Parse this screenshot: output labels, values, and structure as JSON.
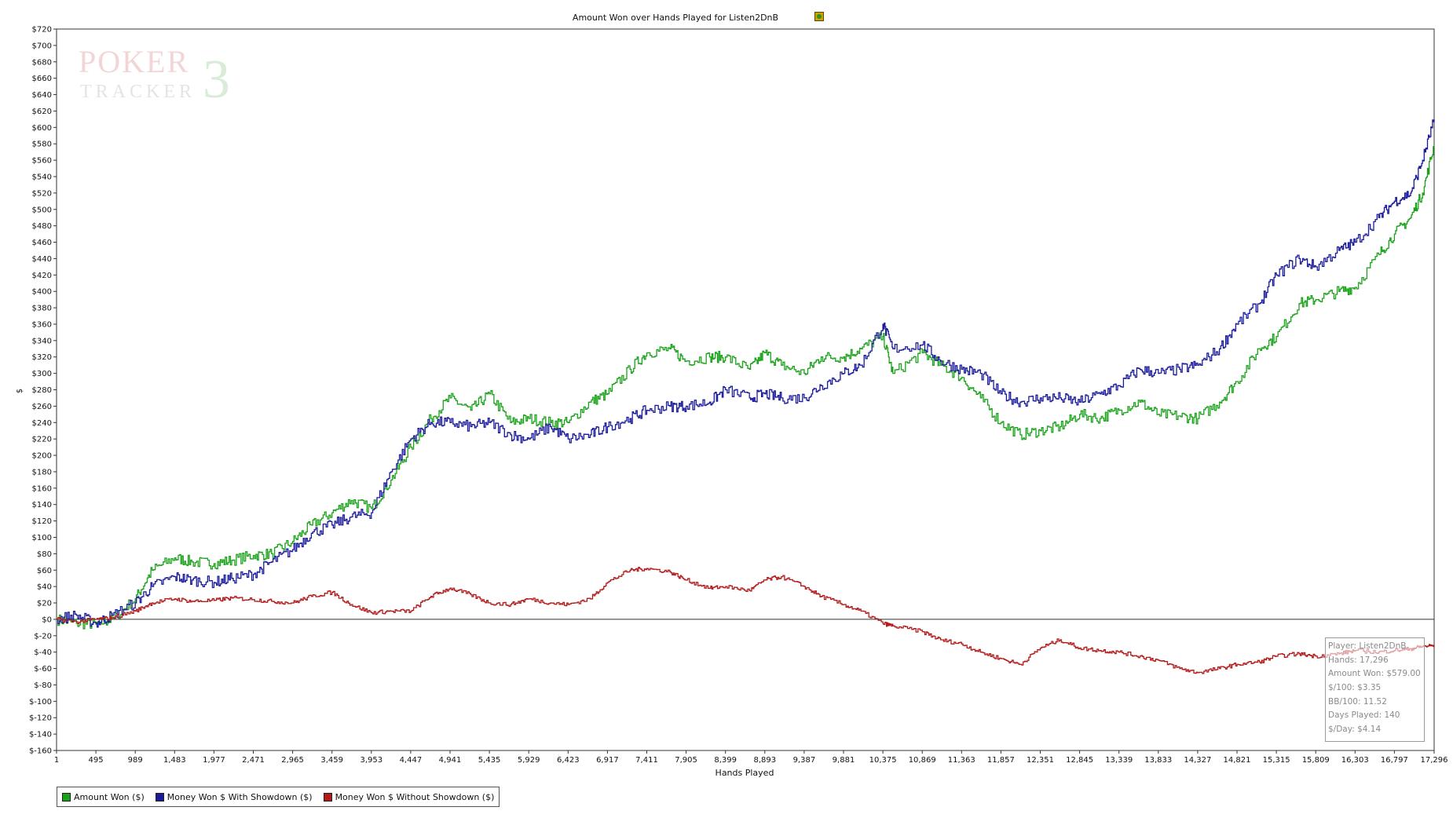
{
  "chart_data": {
    "type": "line",
    "title": "Amount Won over Hands Played for Listen2DnB",
    "xlabel": "Hands Played",
    "ylabel": "$",
    "xlim": [
      1,
      17296
    ],
    "ylim": [
      -160,
      720
    ],
    "x_ticks": [
      "1",
      "495",
      "989",
      "1,483",
      "1,977",
      "2,471",
      "2,965",
      "3,459",
      "3,953",
      "4,447",
      "4,941",
      "5,435",
      "5,929",
      "6,423",
      "6,917",
      "7,411",
      "7,905",
      "8,399",
      "8,893",
      "9,387",
      "9,881",
      "10,375",
      "10,869",
      "11,363",
      "11,857",
      "12,351",
      "12,845",
      "13,339",
      "13,833",
      "14,327",
      "14,821",
      "15,315",
      "15,809",
      "16,303",
      "16,797",
      "17,296"
    ],
    "y_ticks": [
      "$720",
      "$700",
      "$680",
      "$660",
      "$640",
      "$620",
      "$600",
      "$580",
      "$560",
      "$540",
      "$520",
      "$500",
      "$480",
      "$460",
      "$440",
      "$420",
      "$400",
      "$380",
      "$360",
      "$340",
      "$320",
      "$300",
      "$280",
      "$260",
      "$240",
      "$220",
      "$200",
      "$180",
      "$160",
      "$140",
      "$120",
      "$100",
      "$80",
      "$60",
      "$40",
      "$20",
      "$0",
      "$-20",
      "$-40",
      "$-60",
      "$-80",
      "$-100",
      "$-120",
      "$-140",
      "$-160"
    ],
    "grid": false,
    "legend_position": "bottom-left",
    "series": [
      {
        "name": "Amount Won ($)",
        "color": "#1aa31a",
        "x": [
          1,
          250,
          495,
          700,
          989,
          1200,
          1483,
          1700,
          1977,
          2200,
          2471,
          2700,
          2965,
          3200,
          3459,
          3700,
          3953,
          4200,
          4447,
          4700,
          4941,
          5200,
          5435,
          5700,
          5929,
          6200,
          6423,
          6700,
          6917,
          7200,
          7411,
          7700,
          7905,
          8200,
          8399,
          8700,
          8893,
          9100,
          9387,
          9600,
          9881,
          10100,
          10375,
          10500,
          10869,
          11100,
          11363,
          11600,
          11857,
          12100,
          12351,
          12600,
          12845,
          13100,
          13339,
          13600,
          13833,
          14100,
          14327,
          14600,
          14821,
          15100,
          15315,
          15600,
          15809,
          16100,
          16303,
          16600,
          16797,
          17000,
          17150,
          17296
        ],
        "y": [
          0,
          -5,
          -6,
          0,
          25,
          60,
          75,
          70,
          68,
          72,
          78,
          80,
          95,
          115,
          130,
          145,
          135,
          170,
          210,
          245,
          270,
          255,
          275,
          240,
          245,
          240,
          240,
          265,
          275,
          305,
          325,
          330,
          315,
          320,
          320,
          305,
          325,
          310,
          300,
          320,
          320,
          330,
          345,
          300,
          325,
          310,
          295,
          270,
          240,
          225,
          230,
          235,
          250,
          245,
          255,
          265,
          250,
          248,
          245,
          265,
          290,
          330,
          345,
          385,
          390,
          400,
          405,
          445,
          470,
          490,
          520,
          579
        ]
      },
      {
        "name": "Money Won $ With Showdown ($)",
        "color": "#1a1a9c",
        "x": [
          1,
          250,
          495,
          700,
          989,
          1200,
          1483,
          1700,
          1977,
          2200,
          2471,
          2700,
          2965,
          3200,
          3459,
          3700,
          3953,
          4200,
          4447,
          4700,
          4941,
          5200,
          5435,
          5700,
          5929,
          6200,
          6423,
          6700,
          6917,
          7200,
          7411,
          7700,
          7905,
          8200,
          8399,
          8700,
          8893,
          9100,
          9387,
          9600,
          9881,
          10100,
          10375,
          10500,
          10869,
          11100,
          11363,
          11600,
          11857,
          12100,
          12351,
          12600,
          12845,
          13100,
          13339,
          13600,
          13833,
          14100,
          14327,
          14600,
          14821,
          15100,
          15315,
          15600,
          15809,
          16100,
          16303,
          16600,
          16797,
          17000,
          17150,
          17296
        ],
        "y": [
          0,
          5,
          -5,
          5,
          20,
          40,
          52,
          48,
          45,
          50,
          55,
          70,
          85,
          105,
          115,
          125,
          130,
          180,
          220,
          240,
          240,
          235,
          240,
          225,
          220,
          235,
          220,
          225,
          235,
          245,
          255,
          260,
          260,
          265,
          280,
          270,
          275,
          270,
          270,
          285,
          300,
          310,
          360,
          330,
          335,
          315,
          305,
          300,
          275,
          265,
          270,
          270,
          265,
          275,
          285,
          305,
          300,
          305,
          310,
          330,
          360,
          385,
          420,
          440,
          430,
          450,
          460,
          490,
          510,
          520,
          560,
          610
        ]
      },
      {
        "name": "Money Won $ Without Showdown ($)",
        "color": "#b31a1a",
        "x": [
          1,
          250,
          495,
          700,
          989,
          1200,
          1483,
          1700,
          1977,
          2200,
          2471,
          2700,
          2965,
          3200,
          3459,
          3700,
          3953,
          4200,
          4447,
          4700,
          4941,
          5200,
          5435,
          5700,
          5929,
          6200,
          6423,
          6700,
          6917,
          7200,
          7411,
          7700,
          7905,
          8200,
          8399,
          8700,
          8893,
          9100,
          9387,
          9600,
          9881,
          10100,
          10375,
          10500,
          10869,
          11100,
          11363,
          11600,
          11857,
          12100,
          12351,
          12600,
          12845,
          13100,
          13339,
          13600,
          13833,
          14100,
          14327,
          14600,
          14821,
          15100,
          15315,
          15600,
          15809,
          16100,
          16303,
          16600,
          16797,
          17000,
          17150,
          17296
        ],
        "y": [
          0,
          -3,
          0,
          2,
          10,
          20,
          25,
          22,
          23,
          26,
          24,
          22,
          20,
          28,
          33,
          18,
          8,
          10,
          10,
          28,
          38,
          30,
          20,
          18,
          25,
          20,
          18,
          25,
          45,
          60,
          62,
          58,
          48,
          38,
          40,
          35,
          48,
          52,
          40,
          28,
          18,
          10,
          -5,
          -8,
          -15,
          -25,
          -30,
          -40,
          -48,
          -55,
          -35,
          -25,
          -35,
          -38,
          -40,
          -45,
          -50,
          -60,
          -65,
          -60,
          -55,
          -52,
          -45,
          -42,
          -45,
          -42,
          -38,
          -40,
          -38,
          -36,
          -33,
          -32
        ]
      }
    ],
    "info_box": [
      "Player: Listen2DnB",
      "Hands: 17,296",
      "Amount Won: $579.00",
      "$/100: $3.35",
      "BB/100: 11.52",
      "Days Played: 140",
      "$/Day: $4.14"
    ]
  },
  "watermark": {
    "line1": "POKER",
    "line2": "TRACKER",
    "mark": "3"
  }
}
